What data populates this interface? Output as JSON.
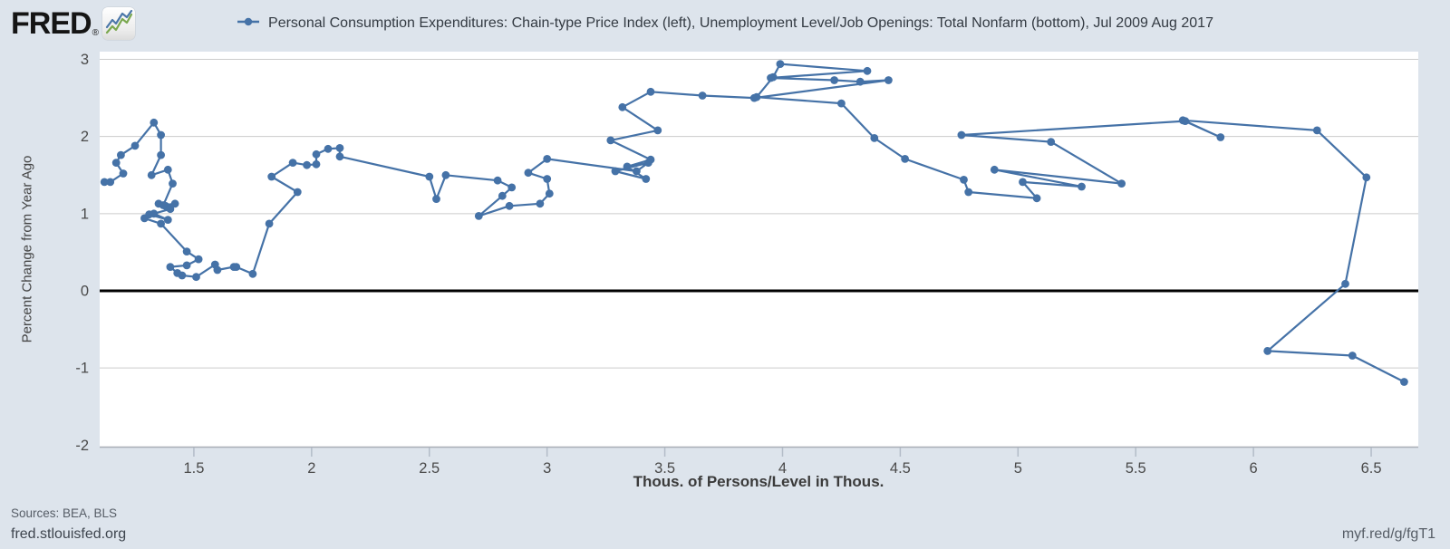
{
  "header": {
    "logo_text": "FRED",
    "registered_mark": "®",
    "legend_label": "Personal Consumption Expenditures: Chain-type Price Index (left), Unemployment Level/Job Openings: Total Nonfarm (bottom), Jul 2009 Aug 2017"
  },
  "footer": {
    "sources": "Sources: BEA, BLS",
    "site": "fred.stlouisfed.org",
    "shortlink": "myf.red/g/fgT1"
  },
  "colors": {
    "page_background": "#dde4ec",
    "plot_background": "#ffffff",
    "series": "#4572a7",
    "gridline": "#cccccc",
    "zero_line": "#000000",
    "axis_line": "#a8aeb6",
    "tick": "#b3bcc8",
    "tick_label": "#4a4a4a"
  },
  "chart_data": {
    "type": "scatter",
    "subtype": "connected-scatter-path",
    "title": "Personal Consumption Expenditures: Chain-type Price Index (left), Unemployment Level/Job Openings: Total Nonfarm (bottom), Jul 2009 Aug 2017",
    "period": "Jul 2009 - Aug 2017 (monthly path, starts bottom-right, ends far left)",
    "xlabel": "Thous. of Persons/Level in Thous.",
    "ylabel": "Percent Change from Year Ago",
    "x_range": [
      1.1,
      6.7
    ],
    "y_range": [
      -2.02,
      3.1
    ],
    "x_ticks": {
      "values": [
        1.5,
        2,
        2.5,
        3,
        3.5,
        4,
        4.5,
        5,
        5.5,
        6,
        6.5
      ],
      "labels": [
        "1.5",
        "2",
        "2.5",
        "3",
        "3.5",
        "4",
        "4.5",
        "5",
        "5.5",
        "6",
        "6.5"
      ]
    },
    "y_ticks": {
      "values": [
        3,
        2,
        1,
        0,
        -1,
        -2
      ],
      "labels": [
        "3",
        "2",
        "1",
        "0",
        "-1",
        "-2"
      ]
    },
    "zero_line_y": 0,
    "grid": true,
    "legend_position": "top-center",
    "points": [
      [
        6.64,
        -1.18
      ],
      [
        6.42,
        -0.84
      ],
      [
        6.06,
        -0.78
      ],
      [
        6.39,
        0.09
      ],
      [
        6.48,
        1.47
      ],
      [
        6.27,
        2.08
      ],
      [
        5.7,
        2.21
      ],
      [
        5.86,
        1.99
      ],
      [
        5.71,
        2.2
      ],
      [
        4.76,
        2.02
      ],
      [
        5.14,
        1.93
      ],
      [
        5.44,
        1.39
      ],
      [
        4.9,
        1.57
      ],
      [
        5.27,
        1.35
      ],
      [
        5.02,
        1.41
      ],
      [
        5.08,
        1.2
      ],
      [
        4.79,
        1.28
      ],
      [
        4.77,
        1.44
      ],
      [
        4.52,
        1.71
      ],
      [
        4.39,
        1.98
      ],
      [
        4.25,
        2.43
      ],
      [
        3.89,
        2.51
      ],
      [
        3.96,
        2.77
      ],
      [
        3.99,
        2.94
      ],
      [
        4.36,
        2.85
      ],
      [
        3.95,
        2.76
      ],
      [
        4.22,
        2.73
      ],
      [
        4.33,
        2.71
      ],
      [
        4.45,
        2.73
      ],
      [
        3.88,
        2.5
      ],
      [
        3.66,
        2.53
      ],
      [
        3.44,
        2.58
      ],
      [
        3.32,
        2.38
      ],
      [
        3.47,
        2.08
      ],
      [
        3.27,
        1.95
      ],
      [
        3.44,
        1.7
      ],
      [
        3.34,
        1.61
      ],
      [
        3.42,
        1.45
      ],
      [
        3.29,
        1.55
      ],
      [
        3.43,
        1.66
      ],
      [
        3.38,
        1.55
      ],
      [
        3.0,
        1.71
      ],
      [
        2.92,
        1.53
      ],
      [
        3.0,
        1.45
      ],
      [
        3.01,
        1.26
      ],
      [
        2.97,
        1.13
      ],
      [
        2.84,
        1.1
      ],
      [
        2.71,
        0.97
      ],
      [
        2.81,
        1.23
      ],
      [
        2.85,
        1.34
      ],
      [
        2.79,
        1.43
      ],
      [
        2.57,
        1.5
      ],
      [
        2.53,
        1.19
      ],
      [
        2.5,
        1.48
      ],
      [
        2.12,
        1.74
      ],
      [
        2.12,
        1.85
      ],
      [
        2.07,
        1.84
      ],
      [
        2.02,
        1.77
      ],
      [
        2.02,
        1.64
      ],
      [
        1.98,
        1.63
      ],
      [
        1.92,
        1.66
      ],
      [
        1.83,
        1.48
      ],
      [
        1.94,
        1.28
      ],
      [
        1.82,
        0.87
      ],
      [
        1.75,
        0.22
      ],
      [
        1.68,
        0.31
      ],
      [
        1.67,
        0.31
      ],
      [
        1.6,
        0.27
      ],
      [
        1.59,
        0.34
      ],
      [
        1.51,
        0.18
      ],
      [
        1.45,
        0.2
      ],
      [
        1.43,
        0.23
      ],
      [
        1.4,
        0.31
      ],
      [
        1.47,
        0.33
      ],
      [
        1.52,
        0.41
      ],
      [
        1.47,
        0.51
      ],
      [
        1.36,
        0.87
      ],
      [
        1.29,
        0.94
      ],
      [
        1.31,
        0.99
      ],
      [
        1.39,
        0.92
      ],
      [
        1.33,
        1.0
      ],
      [
        1.4,
        1.06
      ],
      [
        1.35,
        1.13
      ],
      [
        1.38,
        1.1
      ],
      [
        1.42,
        1.13
      ],
      [
        1.37,
        1.11
      ],
      [
        1.41,
        1.39
      ],
      [
        1.39,
        1.57
      ],
      [
        1.32,
        1.5
      ],
      [
        1.36,
        1.76
      ],
      [
        1.36,
        2.02
      ],
      [
        1.33,
        2.18
      ],
      [
        1.25,
        1.88
      ],
      [
        1.19,
        1.76
      ],
      [
        1.17,
        1.66
      ],
      [
        1.2,
        1.52
      ],
      [
        1.145,
        1.41
      ],
      [
        1.12,
        1.41
      ]
    ]
  }
}
